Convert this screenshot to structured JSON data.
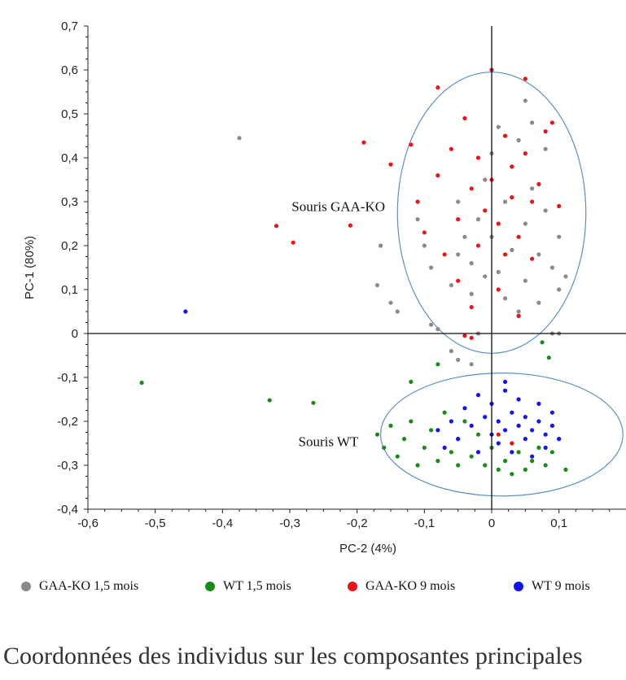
{
  "chart_data": {
    "type": "scatter",
    "xlabel": "PC-2 (4%)",
    "ylabel": "PC-1 (80%)",
    "xlim": [
      -0.6,
      0.2
    ],
    "ylim": [
      -0.4,
      0.7
    ],
    "xticks": [
      "-0,6",
      "-0,5",
      "-0,4",
      "-0,3",
      "-0,2",
      "-0,1",
      "0",
      "0,1"
    ],
    "yticks": [
      "0,7",
      "0,6",
      "0,5",
      "0,4",
      "0,3",
      "0,2",
      "0,1",
      "0",
      "-0,1",
      "-0,2",
      "-0,3",
      "-0,4"
    ],
    "grid": false,
    "legend_position": "bottom",
    "annotations": [
      {
        "text": "Souris GAA-KO",
        "x": -0.215,
        "y": 0.29
      },
      {
        "text": "Souris WT",
        "x": -0.205,
        "y": -0.245
      }
    ],
    "ellipses": [
      {
        "center": [
          0.0,
          0.275
        ],
        "radii": [
          0.14,
          0.32
        ]
      },
      {
        "center": [
          0.015,
          -0.23
        ],
        "radii": [
          0.18,
          0.14
        ]
      }
    ],
    "series": [
      {
        "name": "GAA-KO 1,5 mois",
        "color": "#8a8a8a",
        "points": [
          [
            -0.375,
            0.445
          ],
          [
            -0.165,
            0.2
          ],
          [
            -0.17,
            0.11
          ],
          [
            -0.15,
            0.07
          ],
          [
            -0.14,
            0.05
          ],
          [
            -0.11,
            0.26
          ],
          [
            -0.1,
            0.2
          ],
          [
            -0.09,
            0.15
          ],
          [
            -0.09,
            0.02
          ],
          [
            -0.08,
            0.01
          ],
          [
            -0.06,
            0.11
          ],
          [
            -0.05,
            0.18
          ],
          [
            -0.05,
            0.3
          ],
          [
            -0.04,
            0.22
          ],
          [
            -0.03,
            0.09
          ],
          [
            -0.03,
            0.16
          ],
          [
            -0.02,
            0.26
          ],
          [
            -0.02,
            0.0
          ],
          [
            -0.01,
            0.13
          ],
          [
            -0.01,
            0.35
          ],
          [
            0.0,
            0.41
          ],
          [
            0.0,
            0.22
          ],
          [
            0.01,
            0.47
          ],
          [
            0.01,
            0.14
          ],
          [
            0.02,
            0.3
          ],
          [
            0.02,
            0.08
          ],
          [
            0.03,
            0.38
          ],
          [
            0.03,
            0.19
          ],
          [
            0.04,
            0.44
          ],
          [
            0.04,
            0.05
          ],
          [
            0.05,
            0.25
          ],
          [
            0.05,
            0.12
          ],
          [
            0.06,
            0.33
          ],
          [
            0.06,
            0.48
          ],
          [
            0.07,
            0.18
          ],
          [
            0.07,
            0.07
          ],
          [
            0.08,
            0.28
          ],
          [
            0.08,
            0.42
          ],
          [
            0.09,
            0.15
          ],
          [
            0.1,
            0.22
          ],
          [
            0.1,
            0.1
          ],
          [
            0.11,
            0.13
          ],
          [
            -0.06,
            -0.04
          ],
          [
            -0.05,
            -0.06
          ],
          [
            -0.03,
            -0.07
          ],
          [
            0.09,
            0.0
          ],
          [
            0.1,
            0.0
          ],
          [
            0.05,
            0.53
          ]
        ]
      },
      {
        "name": "WT 1,5 mois",
        "color": "#1a8a1a",
        "points": [
          [
            -0.52,
            -0.112
          ],
          [
            -0.33,
            -0.152
          ],
          [
            -0.265,
            -0.158
          ],
          [
            -0.17,
            -0.23
          ],
          [
            -0.16,
            -0.26
          ],
          [
            -0.15,
            -0.21
          ],
          [
            -0.14,
            -0.28
          ],
          [
            -0.13,
            -0.24
          ],
          [
            -0.12,
            -0.11
          ],
          [
            -0.12,
            -0.2
          ],
          [
            -0.11,
            -0.3
          ],
          [
            -0.1,
            -0.26
          ],
          [
            -0.09,
            -0.22
          ],
          [
            -0.08,
            -0.29
          ],
          [
            -0.07,
            -0.18
          ],
          [
            -0.06,
            -0.27
          ],
          [
            -0.05,
            -0.24
          ],
          [
            -0.05,
            -0.3
          ],
          [
            -0.04,
            -0.2
          ],
          [
            -0.03,
            -0.28
          ],
          [
            -0.02,
            -0.23
          ],
          [
            -0.01,
            -0.3
          ],
          [
            0.0,
            -0.26
          ],
          [
            0.01,
            -0.31
          ],
          [
            0.02,
            -0.29
          ],
          [
            0.03,
            -0.32
          ],
          [
            0.04,
            -0.27
          ],
          [
            0.05,
            -0.31
          ],
          [
            0.06,
            -0.29
          ],
          [
            0.07,
            -0.26
          ],
          [
            0.08,
            -0.3
          ],
          [
            0.09,
            -0.27
          ],
          [
            0.1,
            -0.24
          ],
          [
            0.11,
            -0.31
          ],
          [
            0.075,
            -0.02
          ],
          [
            0.085,
            -0.055
          ],
          [
            -0.08,
            -0.07
          ]
        ]
      },
      {
        "name": "GAA-KO 9 mois",
        "color": "#e8141c",
        "points": [
          [
            -0.32,
            0.245
          ],
          [
            -0.295,
            0.207
          ],
          [
            -0.21,
            0.246
          ],
          [
            -0.19,
            0.435
          ],
          [
            -0.15,
            0.385
          ],
          [
            -0.12,
            0.43
          ],
          [
            -0.11,
            0.3
          ],
          [
            -0.1,
            0.23
          ],
          [
            -0.08,
            0.56
          ],
          [
            -0.08,
            0.36
          ],
          [
            -0.07,
            0.18
          ],
          [
            -0.06,
            0.42
          ],
          [
            -0.05,
            0.26
          ],
          [
            -0.05,
            0.12
          ],
          [
            -0.04,
            0.49
          ],
          [
            -0.03,
            0.33
          ],
          [
            -0.03,
            0.06
          ],
          [
            -0.02,
            0.4
          ],
          [
            -0.02,
            0.2
          ],
          [
            -0.01,
            0.28
          ],
          [
            0.0,
            0.6
          ],
          [
            0.0,
            0.35
          ],
          [
            0.01,
            0.25
          ],
          [
            0.01,
            0.1
          ],
          [
            0.02,
            0.45
          ],
          [
            0.02,
            0.18
          ],
          [
            0.03,
            0.31
          ],
          [
            0.03,
            0.38
          ],
          [
            0.04,
            0.22
          ],
          [
            0.04,
            0.04
          ],
          [
            0.05,
            0.58
          ],
          [
            0.05,
            0.41
          ],
          [
            0.06,
            0.3
          ],
          [
            0.06,
            0.17
          ],
          [
            0.07,
            0.34
          ],
          [
            0.08,
            0.46
          ],
          [
            0.09,
            0.48
          ],
          [
            0.1,
            0.29
          ],
          [
            -0.04,
            -0.005
          ],
          [
            -0.03,
            -0.01
          ],
          [
            0.01,
            -0.23
          ],
          [
            0.03,
            -0.25
          ]
        ]
      },
      {
        "name": "WT 9 mois",
        "color": "#1414e6",
        "points": [
          [
            -0.455,
            0.05
          ],
          [
            -0.08,
            -0.22
          ],
          [
            -0.07,
            -0.26
          ],
          [
            -0.06,
            -0.2
          ],
          [
            -0.05,
            -0.24
          ],
          [
            -0.04,
            -0.17
          ],
          [
            -0.03,
            -0.21
          ],
          [
            -0.02,
            -0.27
          ],
          [
            -0.01,
            -0.19
          ],
          [
            0.0,
            -0.23
          ],
          [
            0.0,
            -0.16
          ],
          [
            0.01,
            -0.25
          ],
          [
            0.01,
            -0.2
          ],
          [
            0.02,
            -0.11
          ],
          [
            0.02,
            -0.22
          ],
          [
            0.03,
            -0.18
          ],
          [
            0.03,
            -0.27
          ],
          [
            0.04,
            -0.21
          ],
          [
            0.04,
            -0.15
          ],
          [
            0.05,
            -0.24
          ],
          [
            0.05,
            -0.19
          ],
          [
            0.06,
            -0.22
          ],
          [
            0.06,
            -0.28
          ],
          [
            0.07,
            -0.2
          ],
          [
            0.07,
            -0.16
          ],
          [
            0.08,
            -0.23
          ],
          [
            0.08,
            -0.26
          ],
          [
            0.09,
            -0.21
          ],
          [
            0.09,
            -0.18
          ],
          [
            0.1,
            -0.24
          ],
          [
            -0.02,
            -0.14
          ],
          [
            0.02,
            -0.13
          ]
        ]
      }
    ]
  },
  "caption": "Coordonnées des individus sur les composantes principales"
}
